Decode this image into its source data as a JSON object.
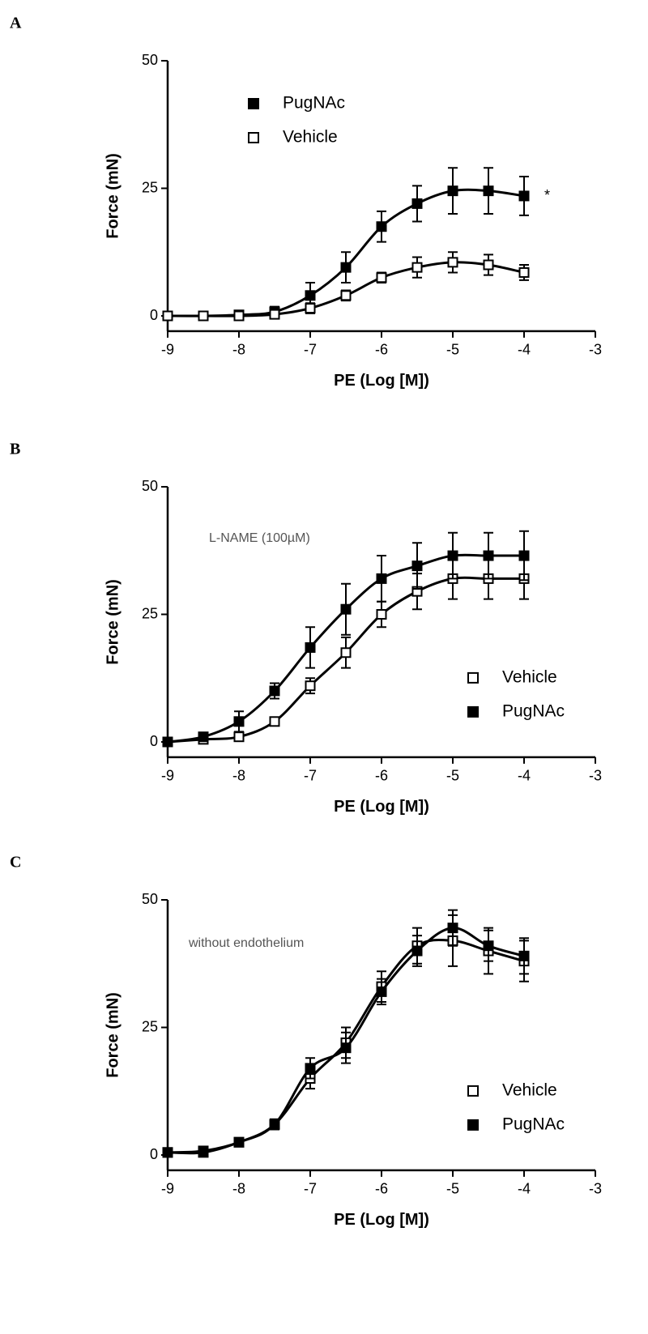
{
  "chart_data": [
    {
      "type": "line",
      "panel": "A",
      "xlabel": "PE (Log [M])",
      "ylabel": "Force (mN)",
      "x": [
        -9,
        -8.5,
        -8,
        -7.5,
        -7,
        -6.5,
        -6,
        -5.5,
        -5,
        -4.5,
        -4
      ],
      "series": [
        {
          "name": "PugNAc",
          "color": "#000000",
          "marker": "filled",
          "values": [
            0,
            0,
            0.2,
            0.8,
            4,
            9.5,
            17.5,
            22,
            24.5,
            24.5,
            23.5
          ],
          "errors": [
            0.5,
            0.5,
            0.5,
            1,
            2.5,
            3,
            3,
            3.5,
            4.5,
            4.5,
            3.8
          ]
        },
        {
          "name": "Vehicle",
          "color": "#000000",
          "marker": "open",
          "values": [
            0,
            0,
            0,
            0.3,
            1.5,
            4,
            7.5,
            9.5,
            10.5,
            10,
            8.5
          ],
          "errors": [
            0.3,
            0.3,
            0.3,
            0.5,
            1,
            1,
            1,
            2,
            2,
            2,
            1.5
          ]
        }
      ],
      "annotations": [
        "*"
      ],
      "legend": "upper left",
      "xlim": [
        -9,
        -3
      ],
      "xticks": [
        -9,
        -8,
        -7,
        -6,
        -5,
        -4,
        -3
      ],
      "ylim": [
        -3,
        50
      ],
      "yticks": [
        0,
        25,
        50
      ]
    },
    {
      "type": "line",
      "panel": "B",
      "xlabel": "PE (Log [M])",
      "ylabel": "Force (mN)",
      "x": [
        -9,
        -8.5,
        -8,
        -7.5,
        -7,
        -6.5,
        -6,
        -5.5,
        -5,
        -4.5,
        -4
      ],
      "series": [
        {
          "name": "Vehicle",
          "color": "#000000",
          "marker": "open",
          "values": [
            0,
            0.5,
            1,
            4,
            11,
            17.5,
            25,
            29.5,
            32,
            32,
            32
          ],
          "errors": [
            0.3,
            0.3,
            0.5,
            0.8,
            1.5,
            3,
            2.5,
            3.5,
            4,
            4,
            4
          ]
        },
        {
          "name": "PugNAc",
          "color": "#000000",
          "marker": "filled",
          "values": [
            0,
            1,
            4,
            10,
            18.5,
            26,
            32,
            34.5,
            36.5,
            36.5,
            36.5
          ],
          "errors": [
            0.5,
            0.8,
            2,
            1.5,
            4,
            5,
            4.5,
            4.5,
            4.5,
            4.5,
            4.8
          ]
        }
      ],
      "annotations": [
        "L-NAME (100µM)"
      ],
      "legend": "lower right",
      "xlim": [
        -9,
        -3
      ],
      "xticks": [
        -9,
        -8,
        -7,
        -6,
        -5,
        -4,
        -3
      ],
      "ylim": [
        -3,
        50
      ],
      "yticks": [
        0,
        25,
        50
      ]
    },
    {
      "type": "line",
      "panel": "C",
      "xlabel": "PE (Log [M])",
      "ylabel": "Force (mN)",
      "x": [
        -9,
        -8.5,
        -8,
        -7.5,
        -7,
        -6.5,
        -6,
        -5.5,
        -5,
        -4.5,
        -4
      ],
      "series": [
        {
          "name": "Vehicle",
          "color": "#000000",
          "marker": "open",
          "values": [
            0.5,
            0.8,
            2.5,
            6,
            15,
            22,
            33,
            41,
            42,
            40,
            38
          ],
          "errors": [
            0.5,
            0.5,
            0.8,
            1,
            2,
            3,
            3,
            3.5,
            5,
            4.5,
            4
          ]
        },
        {
          "name": "PugNAc",
          "color": "#000000",
          "marker": "filled",
          "values": [
            0.5,
            0.5,
            2.5,
            6,
            17,
            21,
            32,
            40,
            44.5,
            41,
            39
          ],
          "errors": [
            0.5,
            0.5,
            0.8,
            1,
            2,
            3,
            2.5,
            3,
            3.5,
            3,
            3.5
          ]
        }
      ],
      "annotations": [
        "without endothelium"
      ],
      "legend": "lower right",
      "xlim": [
        -9,
        -3
      ],
      "xticks": [
        -9,
        -8,
        -7,
        -6,
        -5,
        -4,
        -3
      ],
      "ylim": [
        -3,
        50
      ],
      "yticks": [
        0,
        25,
        50
      ]
    }
  ]
}
